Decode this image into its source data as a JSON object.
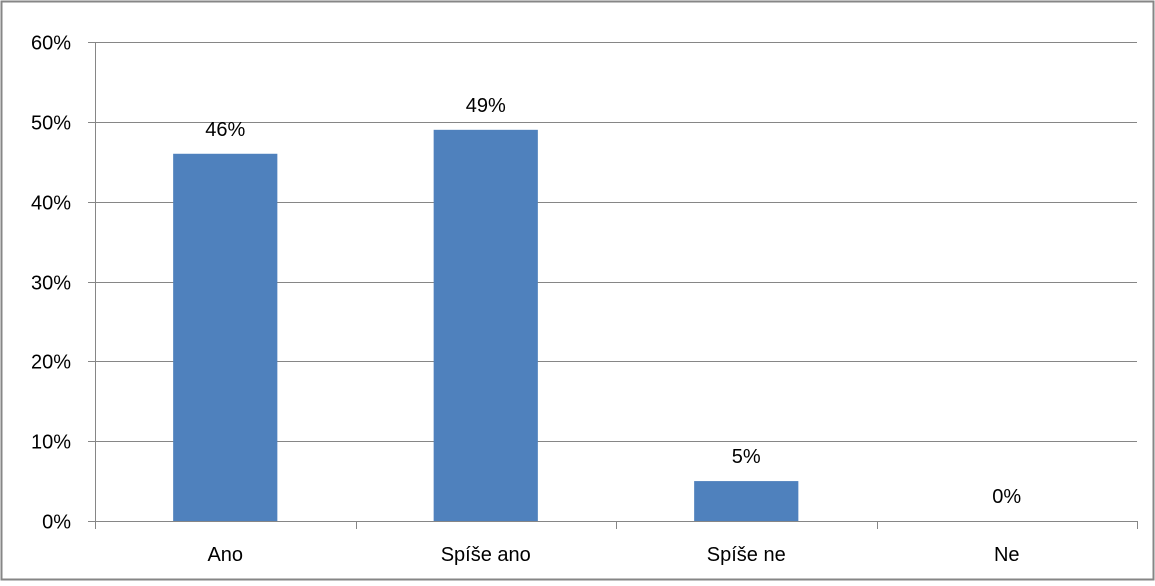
{
  "chart_data": {
    "type": "bar",
    "categories": [
      "Ano",
      "Spíše ano",
      "Spíše ne",
      "Ne"
    ],
    "values": [
      46,
      49,
      5,
      0
    ],
    "data_labels": [
      "46%",
      "49%",
      "5%",
      "0%"
    ],
    "y_tick_labels": [
      "0%",
      "10%",
      "20%",
      "30%",
      "40%",
      "50%",
      "60%"
    ],
    "y_ticks": [
      0,
      10,
      20,
      30,
      40,
      50,
      60
    ],
    "ylim": [
      0,
      60
    ],
    "grid": true,
    "legend": "none",
    "title": "",
    "xlabel": "",
    "ylabel": "",
    "colors": {
      "bar": "#4f81bd",
      "grid": "#868686",
      "axis": "#868686",
      "border": "#868686"
    }
  }
}
